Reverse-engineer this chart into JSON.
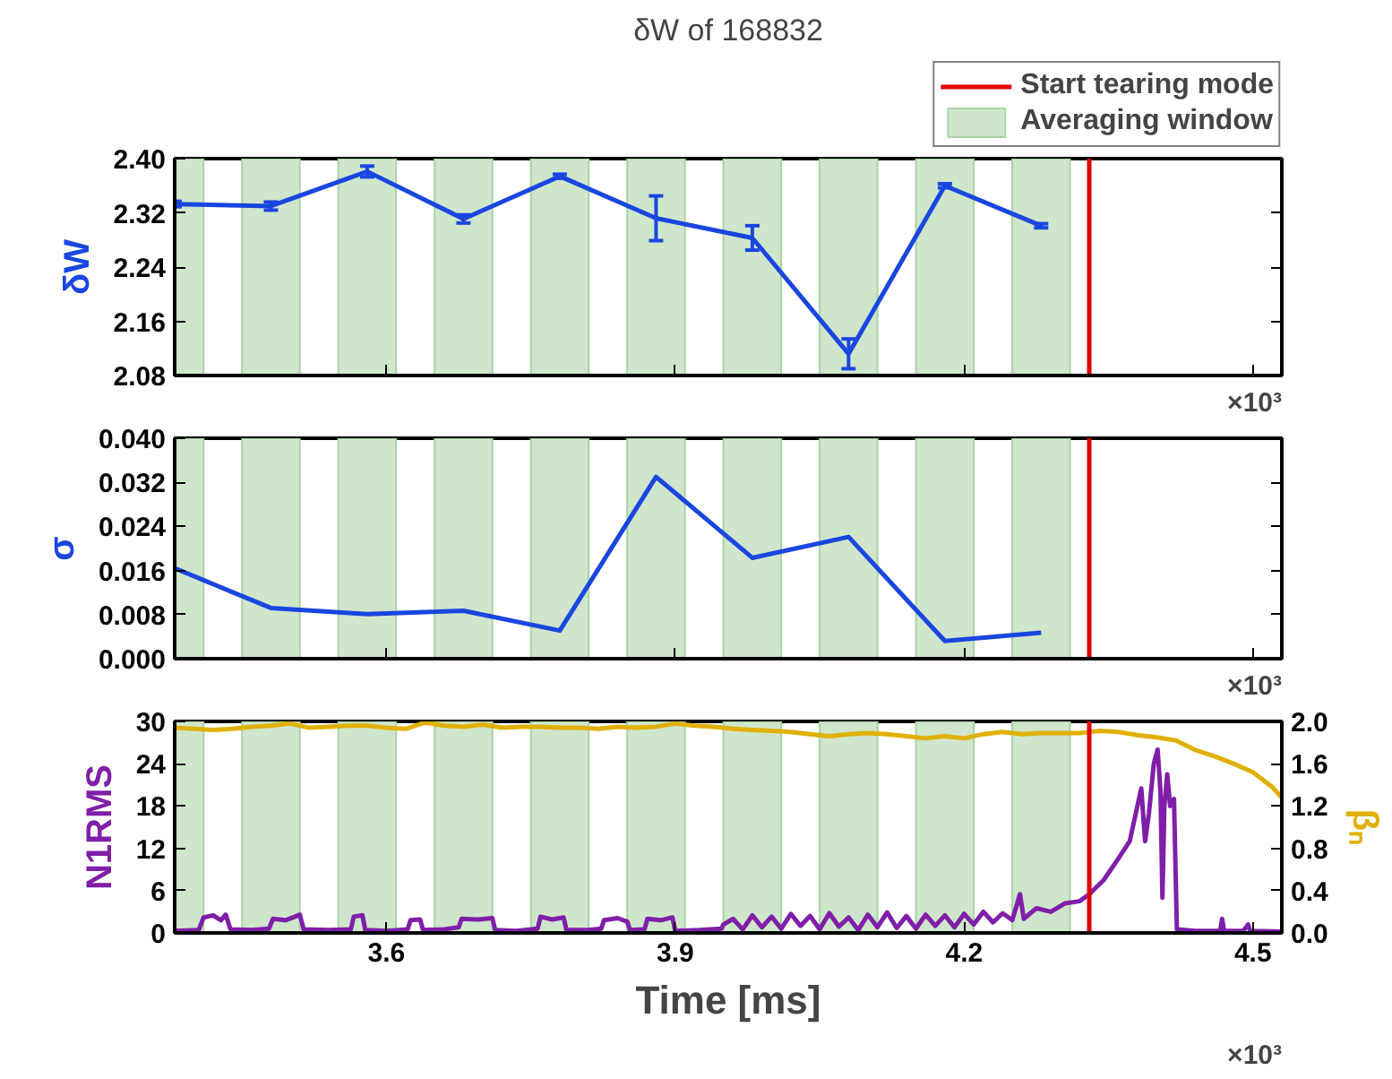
{
  "chart_data": [
    {
      "type": "line",
      "title": "δW of 168832",
      "ylabel": "δW",
      "legend": "top right",
      "tick_labels": "y",
      "annotations": [
        "×10³"
      ],
      "x": [
        3.38,
        3.48,
        3.58,
        3.68,
        3.78,
        3.88,
        3.98,
        4.08,
        4.18,
        4.28
      ],
      "series": [
        {
          "color": "#1a46e0",
          "values": [
            2.333,
            2.33,
            2.381,
            2.311,
            2.374,
            2.312,
            2.283,
            2.112,
            2.36,
            2.301
          ],
          "errors": [
            0.004,
            0.006,
            0.008,
            0.006,
            0.003,
            0.033,
            0.018,
            0.022,
            0.003,
            0.003
          ]
        }
      ],
      "xlim": [
        3.38,
        4.53
      ],
      "xticks": [
        3.6,
        3.9,
        4.2,
        4.5
      ],
      "ylim": [
        2.08,
        2.4
      ],
      "yticks": [
        {
          "value": 2.08,
          "label": "2.08"
        },
        {
          "value": 2.16,
          "label": "2.16"
        },
        {
          "value": 2.24,
          "label": "2.24"
        },
        {
          "value": 2.32,
          "label": "2.32"
        },
        {
          "value": 2.4,
          "label": "2.40"
        }
      ],
      "ref_lines": [
        {
          "axis": "x",
          "value": 4.33,
          "label": "Start tearing mode",
          "color": "#e00000"
        }
      ],
      "bands": [
        {
          "axis": "x",
          "from": 3.38,
          "to": 3.41,
          "label": "Averaging window",
          "color": "#cfe6cc"
        },
        {
          "axis": "x",
          "from": 3.45,
          "to": 3.51,
          "color": "#cfe6cc"
        },
        {
          "axis": "x",
          "from": 3.55,
          "to": 3.61,
          "color": "#cfe6cc"
        },
        {
          "axis": "x",
          "from": 3.65,
          "to": 3.71,
          "color": "#cfe6cc"
        },
        {
          "axis": "x",
          "from": 3.75,
          "to": 3.81,
          "color": "#cfe6cc"
        },
        {
          "axis": "x",
          "from": 3.85,
          "to": 3.91,
          "color": "#cfe6cc"
        },
        {
          "axis": "x",
          "from": 3.95,
          "to": 4.01,
          "color": "#cfe6cc"
        },
        {
          "axis": "x",
          "from": 4.05,
          "to": 4.11,
          "color": "#cfe6cc"
        },
        {
          "axis": "x",
          "from": 4.15,
          "to": 4.21,
          "color": "#cfe6cc"
        },
        {
          "axis": "x",
          "from": 4.25,
          "to": 4.31,
          "color": "#cfe6cc"
        }
      ]
    },
    {
      "type": "line",
      "ylabel": "σ",
      "tick_labels": "y",
      "annotations": [
        "×10³"
      ],
      "x": [
        3.38,
        3.48,
        3.58,
        3.68,
        3.78,
        3.88,
        3.98,
        4.08,
        4.18,
        4.28
      ],
      "series": [
        {
          "color": "#1a46e0",
          "values": [
            0.0164,
            0.0092,
            0.0081,
            0.0087,
            0.0051,
            0.033,
            0.0183,
            0.0221,
            0.0032,
            0.0047
          ]
        }
      ],
      "xlim": [
        3.38,
        4.53
      ],
      "xticks": [
        3.6,
        3.9,
        4.2,
        4.5
      ],
      "ylim": [
        0,
        0.04
      ],
      "yticks": [
        {
          "value": 0,
          "label": "0.000"
        },
        {
          "value": 0.008,
          "label": "0.008"
        },
        {
          "value": 0.016,
          "label": "0.016"
        },
        {
          "value": 0.024,
          "label": "0.024"
        },
        {
          "value": 0.032,
          "label": "0.032"
        },
        {
          "value": 0.04,
          "label": "0.040"
        }
      ],
      "ref_lines": [
        {
          "axis": "x",
          "value": 4.33,
          "color": "#e00000"
        }
      ],
      "bands": [
        {
          "axis": "x",
          "from": 3.38,
          "to": 3.41,
          "color": "#cfe6cc"
        },
        {
          "axis": "x",
          "from": 3.45,
          "to": 3.51,
          "color": "#cfe6cc"
        },
        {
          "axis": "x",
          "from": 3.55,
          "to": 3.61,
          "color": "#cfe6cc"
        },
        {
          "axis": "x",
          "from": 3.65,
          "to": 3.71,
          "color": "#cfe6cc"
        },
        {
          "axis": "x",
          "from": 3.75,
          "to": 3.81,
          "color": "#cfe6cc"
        },
        {
          "axis": "x",
          "from": 3.85,
          "to": 3.91,
          "color": "#cfe6cc"
        },
        {
          "axis": "x",
          "from": 3.95,
          "to": 4.01,
          "color": "#cfe6cc"
        },
        {
          "axis": "x",
          "from": 4.05,
          "to": 4.11,
          "color": "#cfe6cc"
        },
        {
          "axis": "x",
          "from": 4.15,
          "to": 4.21,
          "color": "#cfe6cc"
        },
        {
          "axis": "x",
          "from": 4.25,
          "to": 4.31,
          "color": "#cfe6cc"
        }
      ]
    },
    {
      "type": "line",
      "xlabel": "Time [ms]",
      "ylabel": "N1RMS",
      "y2label": "βₙ",
      "annotations": [
        "×10³"
      ],
      "series": [
        {
          "color": "#7f1fa8",
          "x": [
            3.38,
            3.405,
            3.41,
            3.42,
            3.428,
            3.433,
            3.438,
            3.46,
            3.478,
            3.482,
            3.495,
            3.505,
            3.51,
            3.514,
            3.54,
            3.563,
            3.566,
            3.575,
            3.578,
            3.6,
            3.622,
            3.625,
            3.635,
            3.638,
            3.66,
            3.675,
            3.678,
            3.695,
            3.71,
            3.713,
            3.735,
            3.757,
            3.76,
            3.772,
            3.784,
            3.787,
            3.81,
            3.823,
            3.826,
            3.84,
            3.85,
            3.853,
            3.868,
            3.871,
            3.885,
            3.897,
            3.9,
            3.925,
            3.948,
            3.95,
            3.96,
            3.97,
            3.98,
            3.99,
            4.0,
            4.01,
            4.02,
            4.03,
            4.04,
            4.05,
            4.06,
            4.07,
            4.08,
            4.09,
            4.1,
            4.11,
            4.12,
            4.13,
            4.14,
            4.15,
            4.16,
            4.17,
            4.18,
            4.19,
            4.2,
            4.21,
            4.22,
            4.23,
            4.24,
            4.25,
            4.258,
            4.262,
            4.275,
            4.29,
            4.305,
            4.32,
            4.33,
            4.345,
            4.36,
            4.372,
            4.38,
            4.384,
            4.388,
            4.392,
            4.397,
            4.401,
            4.404,
            4.406,
            4.408,
            4.411,
            4.414,
            4.418,
            4.421,
            4.44,
            4.466,
            4.468,
            4.47,
            4.49,
            4.495,
            4.497,
            4.53
          ],
          "values": [
            0.3,
            0.4,
            2.2,
            2.5,
            1.8,
            2.6,
            0.5,
            0.4,
            0.6,
            2.0,
            1.8,
            2.3,
            2.6,
            0.5,
            0.4,
            0.5,
            2.3,
            2.5,
            0.4,
            0.3,
            0.5,
            1.8,
            1.9,
            0.4,
            0.5,
            0.8,
            2.0,
            1.9,
            2.1,
            0.4,
            0.3,
            0.6,
            2.3,
            1.9,
            2.2,
            0.4,
            0.4,
            0.6,
            1.8,
            2.1,
            1.6,
            0.4,
            0.5,
            2.0,
            1.8,
            2.2,
            0.3,
            0.4,
            0.6,
            1.2,
            2.0,
            0.5,
            2.5,
            0.8,
            2.3,
            0.6,
            2.7,
            1.0,
            2.4,
            0.5,
            2.8,
            0.9,
            2.2,
            0.4,
            2.6,
            0.8,
            2.9,
            0.7,
            2.4,
            0.6,
            2.6,
            1.0,
            2.5,
            0.8,
            2.7,
            1.2,
            3.0,
            1.5,
            2.8,
            1.8,
            5.5,
            2.0,
            3.5,
            3.0,
            4.2,
            4.5,
            5.5,
            7.5,
            10.5,
            13,
            18,
            20.5,
            13,
            17,
            24,
            26,
            20,
            5,
            18,
            22.5,
            18,
            19,
            0.5,
            0.3,
            0.3,
            2.0,
            0.3,
            0.3,
            1.2,
            0.3,
            0.2
          ]
        },
        {
          "color": "#e0b000",
          "axis": "y2",
          "x": [
            3.38,
            3.4,
            3.42,
            3.44,
            3.46,
            3.48,
            3.5,
            3.52,
            3.54,
            3.56,
            3.58,
            3.6,
            3.62,
            3.64,
            3.66,
            3.68,
            3.7,
            3.72,
            3.74,
            3.76,
            3.78,
            3.8,
            3.82,
            3.84,
            3.86,
            3.88,
            3.9,
            3.92,
            3.94,
            3.96,
            3.98,
            4.0,
            4.02,
            4.04,
            4.06,
            4.08,
            4.1,
            4.12,
            4.14,
            4.16,
            4.18,
            4.2,
            4.22,
            4.24,
            4.26,
            4.28,
            4.3,
            4.32,
            4.34,
            4.36,
            4.38,
            4.4,
            4.42,
            4.44,
            4.46,
            4.48,
            4.5,
            4.52,
            4.53
          ],
          "values": [
            1.94,
            1.93,
            1.92,
            1.93,
            1.95,
            1.96,
            1.98,
            1.94,
            1.95,
            1.96,
            1.96,
            1.94,
            1.93,
            1.99,
            1.96,
            1.95,
            1.97,
            1.94,
            1.95,
            1.95,
            1.94,
            1.94,
            1.93,
            1.95,
            1.94,
            1.95,
            1.98,
            1.96,
            1.95,
            1.93,
            1.92,
            1.91,
            1.9,
            1.88,
            1.86,
            1.88,
            1.89,
            1.88,
            1.86,
            1.84,
            1.86,
            1.84,
            1.88,
            1.9,
            1.88,
            1.89,
            1.89,
            1.89,
            1.91,
            1.9,
            1.87,
            1.85,
            1.82,
            1.73,
            1.67,
            1.6,
            1.52,
            1.38,
            1.28
          ]
        }
      ],
      "xlim": [
        3.38,
        4.53
      ],
      "xticks": [
        3.6,
        3.9,
        4.2,
        4.5
      ],
      "ylim": [
        0,
        30
      ],
      "yticks": [
        0,
        6,
        12,
        18,
        24,
        30
      ],
      "y2lim": [
        0,
        2
      ],
      "y2ticks": [
        {
          "value": 0,
          "label": "0.0"
        },
        {
          "value": 0.4,
          "label": "0.4"
        },
        {
          "value": 0.8,
          "label": "0.8"
        },
        {
          "value": 1.2,
          "label": "1.2"
        },
        {
          "value": 1.6,
          "label": "1.6"
        },
        {
          "value": 2,
          "label": "2.0"
        }
      ],
      "ref_lines": [
        {
          "axis": "x",
          "value": 4.33,
          "color": "#e00000"
        }
      ],
      "bands": [
        {
          "axis": "x",
          "from": 3.38,
          "to": 3.41,
          "color": "#cfe6cc"
        },
        {
          "axis": "x",
          "from": 3.45,
          "to": 3.51,
          "color": "#cfe6cc"
        },
        {
          "axis": "x",
          "from": 3.55,
          "to": 3.61,
          "color": "#cfe6cc"
        },
        {
          "axis": "x",
          "from": 3.65,
          "to": 3.71,
          "color": "#cfe6cc"
        },
        {
          "axis": "x",
          "from": 3.75,
          "to": 3.81,
          "color": "#cfe6cc"
        },
        {
          "axis": "x",
          "from": 3.85,
          "to": 3.91,
          "color": "#cfe6cc"
        },
        {
          "axis": "x",
          "from": 3.95,
          "to": 4.01,
          "color": "#cfe6cc"
        },
        {
          "axis": "x",
          "from": 4.05,
          "to": 4.11,
          "color": "#cfe6cc"
        },
        {
          "axis": "x",
          "from": 4.15,
          "to": 4.21,
          "color": "#cfe6cc"
        },
        {
          "axis": "x",
          "from": 4.25,
          "to": 4.31,
          "color": "#cfe6cc"
        }
      ]
    }
  ]
}
